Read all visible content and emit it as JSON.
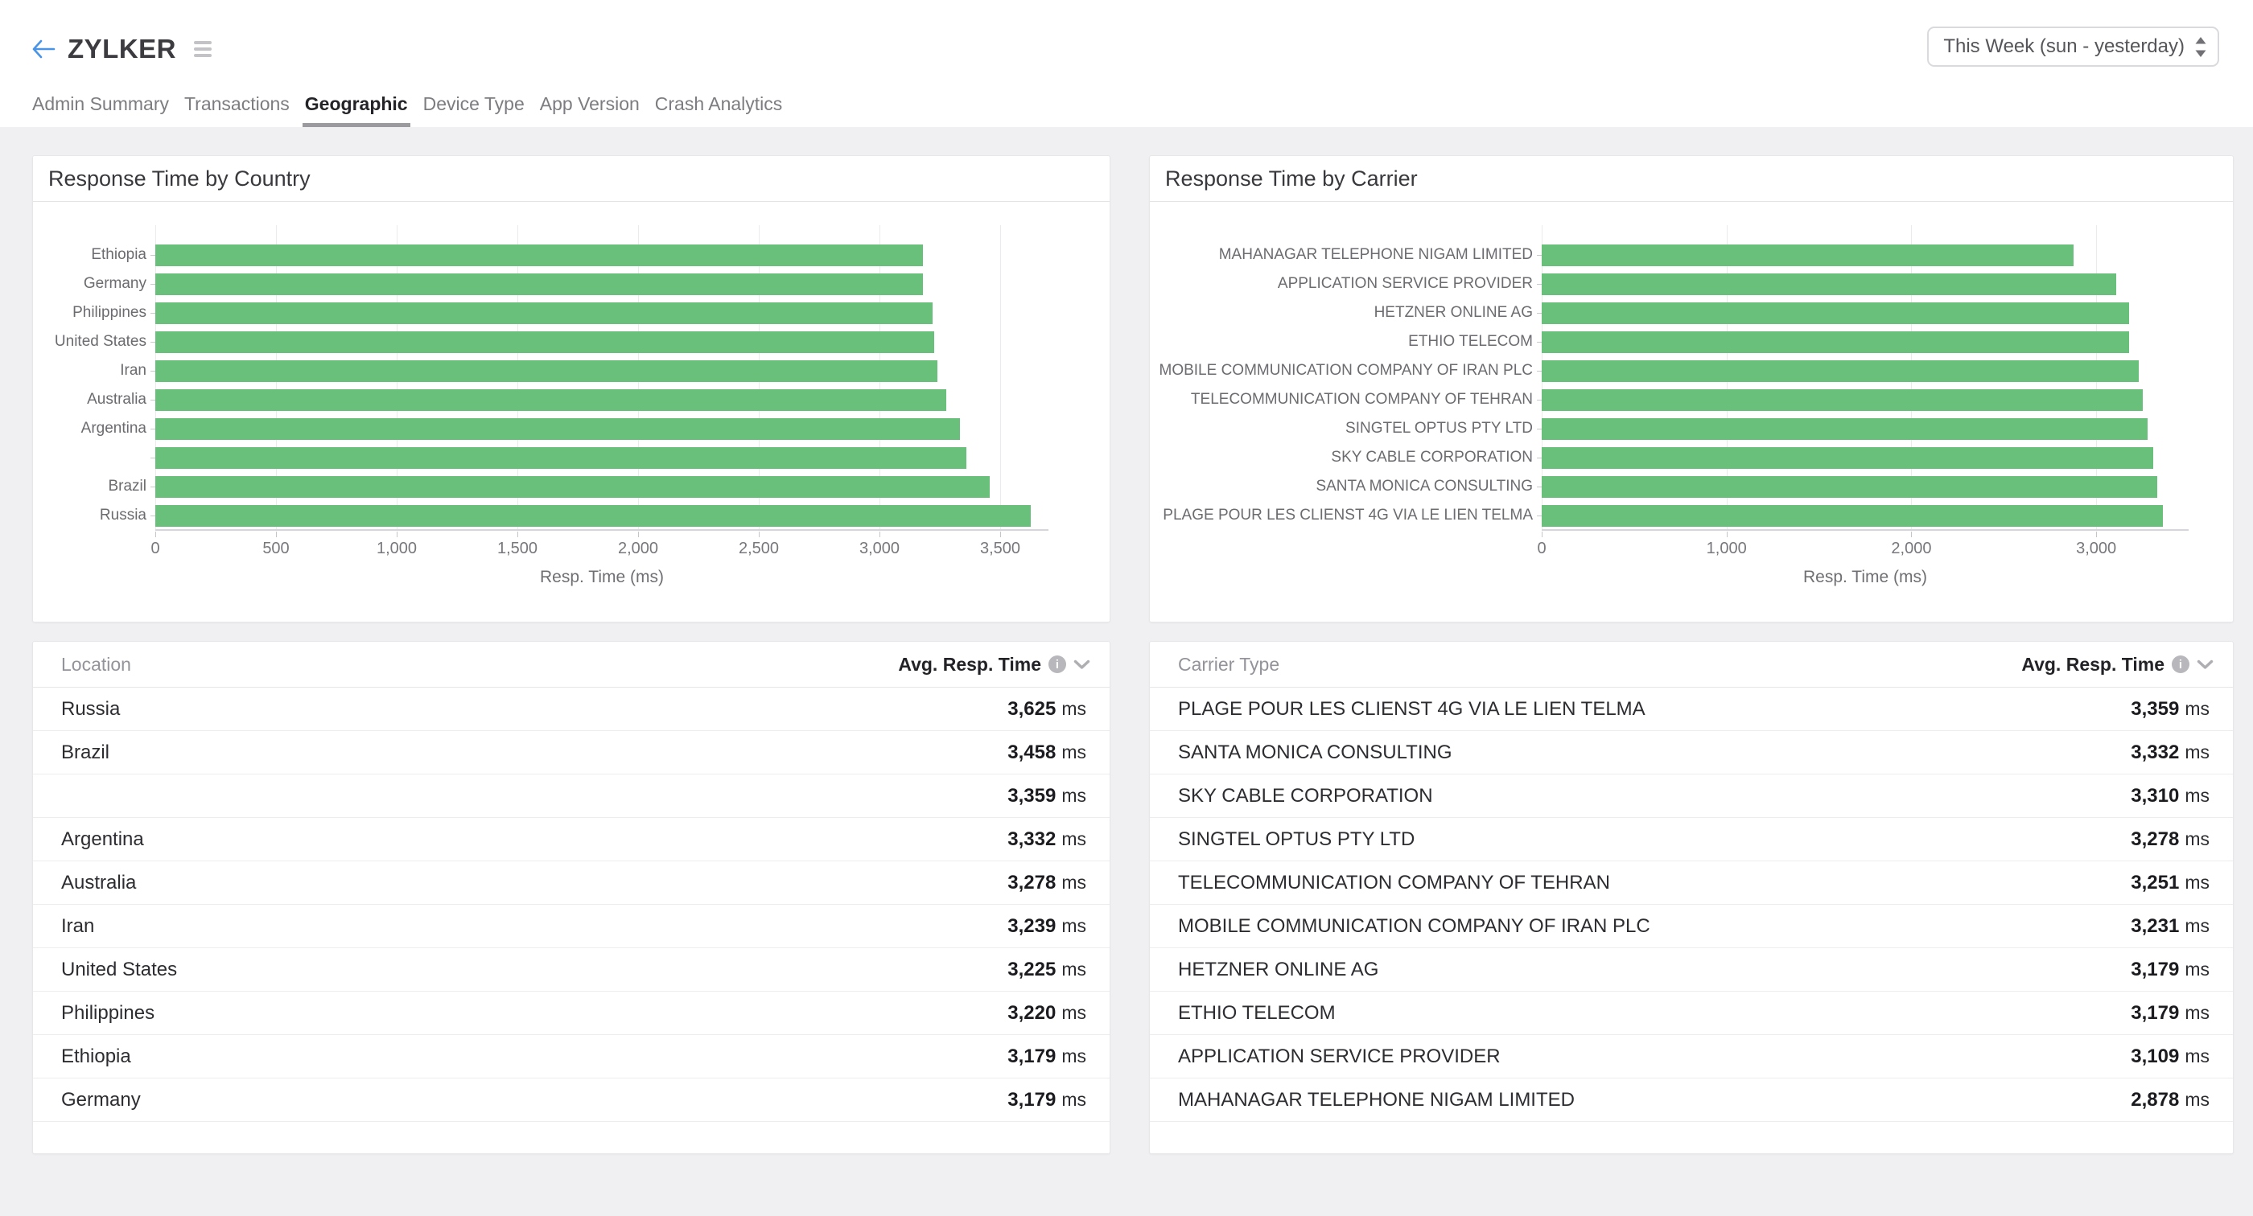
{
  "header": {
    "title": "ZYLKER",
    "time_range_value": "This Week (sun - yesterday)"
  },
  "tabs": [
    {
      "label": "Admin Summary",
      "active": false
    },
    {
      "label": "Transactions",
      "active": false
    },
    {
      "label": "Geographic",
      "active": true
    },
    {
      "label": "Device Type",
      "active": false
    },
    {
      "label": "App Version",
      "active": false
    },
    {
      "label": "Crash Analytics",
      "active": false
    }
  ],
  "chart_data": [
    {
      "type": "bar",
      "orientation": "horizontal",
      "title": "Response Time by Country",
      "xlabel": "Resp. Time (ms)",
      "categories": [
        "Ethiopia",
        "Germany",
        "Philippines",
        "United States",
        "Iran",
        "Australia",
        "Argentina",
        "",
        "Brazil",
        "Russia"
      ],
      "values": [
        3179,
        3179,
        3220,
        3225,
        3239,
        3278,
        3332,
        3359,
        3458,
        3625
      ],
      "xlim": [
        0,
        3700
      ],
      "xticks": [
        0,
        500,
        1000,
        1500,
        2000,
        2500,
        3000,
        3500
      ],
      "bar_color": "#69c07a",
      "grid": true,
      "legend": null
    },
    {
      "type": "bar",
      "orientation": "horizontal",
      "title": "Response Time by Carrier",
      "xlabel": "Resp. Time (ms)",
      "categories": [
        "MAHANAGAR TELEPHONE NIGAM LIMITED",
        "APPLICATION SERVICE PROVIDER",
        "HETZNER ONLINE AG",
        "ETHIO TELECOM",
        "MOBILE COMMUNICATION COMPANY OF IRAN PLC",
        "TELECOMMUNICATION COMPANY OF TEHRAN",
        "SINGTEL OPTUS PTY LTD",
        "SKY CABLE CORPORATION",
        "SANTA MONICA CONSULTING",
        "PLAGE POUR LES CLIENST 4G VIA LE LIEN TELMA"
      ],
      "values": [
        2878,
        3109,
        3179,
        3179,
        3231,
        3251,
        3278,
        3310,
        3332,
        3359
      ],
      "xlim": [
        0,
        3500
      ],
      "xticks": [
        0,
        1000,
        2000,
        3000
      ],
      "bar_color": "#69c07a",
      "grid": true,
      "legend": null
    }
  ],
  "tables": [
    {
      "name_header": "Location",
      "value_header": "Avg. Resp. Time",
      "unit": "ms",
      "rows": [
        {
          "name": "Russia",
          "value": "3,625"
        },
        {
          "name": "Brazil",
          "value": "3,458"
        },
        {
          "name": "",
          "value": "3,359"
        },
        {
          "name": "Argentina",
          "value": "3,332"
        },
        {
          "name": "Australia",
          "value": "3,278"
        },
        {
          "name": "Iran",
          "value": "3,239"
        },
        {
          "name": "United States",
          "value": "3,225"
        },
        {
          "name": "Philippines",
          "value": "3,220"
        },
        {
          "name": "Ethiopia",
          "value": "3,179"
        },
        {
          "name": "Germany",
          "value": "3,179"
        }
      ]
    },
    {
      "name_header": "Carrier Type",
      "value_header": "Avg. Resp. Time",
      "unit": "ms",
      "rows": [
        {
          "name": "PLAGE POUR LES CLIENST 4G VIA LE LIEN TELMA",
          "value": "3,359"
        },
        {
          "name": "SANTA MONICA CONSULTING",
          "value": "3,332"
        },
        {
          "name": "SKY CABLE CORPORATION",
          "value": "3,310"
        },
        {
          "name": "SINGTEL OPTUS PTY LTD",
          "value": "3,278"
        },
        {
          "name": "TELECOMMUNICATION COMPANY OF TEHRAN",
          "value": "3,251"
        },
        {
          "name": "MOBILE COMMUNICATION COMPANY OF IRAN PLC",
          "value": "3,231"
        },
        {
          "name": "HETZNER ONLINE AG",
          "value": "3,179"
        },
        {
          "name": "ETHIO TELECOM",
          "value": "3,179"
        },
        {
          "name": "APPLICATION SERVICE PROVIDER",
          "value": "3,109"
        },
        {
          "name": "MAHANAGAR TELEPHONE NIGAM LIMITED",
          "value": "2,878"
        }
      ]
    }
  ]
}
